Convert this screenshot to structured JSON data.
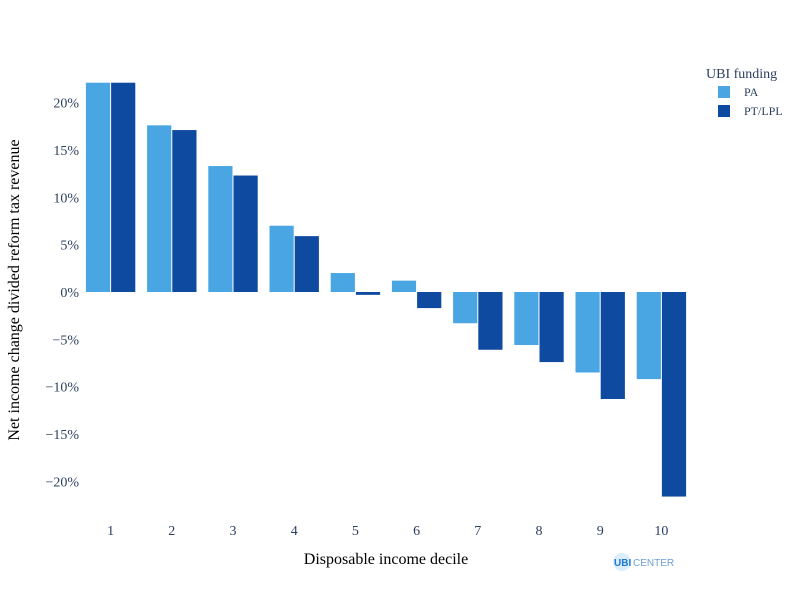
{
  "chart_data": {
    "type": "bar",
    "categories": [
      "1",
      "2",
      "3",
      "4",
      "5",
      "6",
      "7",
      "8",
      "9",
      "10"
    ],
    "series": [
      {
        "name": "PA",
        "color": "#49a6e3",
        "values": [
          22.1,
          17.6,
          13.3,
          7.0,
          2.0,
          1.2,
          -3.3,
          -5.6,
          -8.5,
          -9.2
        ]
      },
      {
        "name": "PT/LPL",
        "color": "#0e4aa0",
        "values": [
          22.1,
          17.1,
          12.3,
          5.9,
          -0.3,
          -1.7,
          -6.1,
          -7.4,
          -11.3,
          -21.6
        ]
      }
    ],
    "xlabel": "Disposable income decile",
    "ylabel": "Net income change divided reform tax revenue",
    "ylim": [
      -24,
      25
    ],
    "yticks": [
      {
        "value": 20,
        "label": "20%"
      },
      {
        "value": 15,
        "label": "15%"
      },
      {
        "value": 10,
        "label": "10%"
      },
      {
        "value": 5,
        "label": "5%"
      },
      {
        "value": 0,
        "label": "0%"
      },
      {
        "value": -5,
        "label": "−5%"
      },
      {
        "value": -10,
        "label": "−10%"
      },
      {
        "value": -15,
        "label": "−15%"
      },
      {
        "value": -20,
        "label": "−20%"
      }
    ],
    "grid": false,
    "legend": {
      "title": "UBI funding",
      "placement": "top-right"
    }
  },
  "logo": {
    "ubi": "UBI",
    "center": "CENTER"
  }
}
